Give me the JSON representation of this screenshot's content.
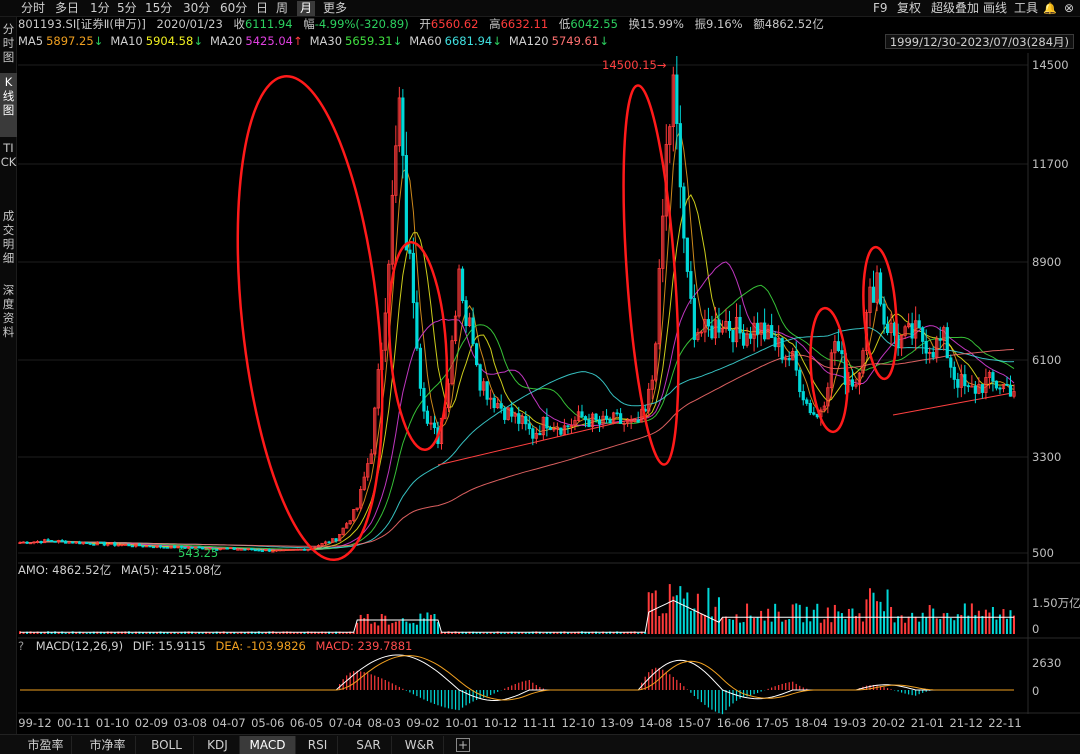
{
  "toolbar": {
    "left": [
      "分时",
      "多日",
      "1分",
      "5分",
      "15分",
      "30分",
      "60分",
      "日",
      "周",
      "月",
      "更多"
    ],
    "active": "月",
    "right": [
      "F9",
      "复权",
      "超级叠加",
      "画线",
      "工具"
    ]
  },
  "left_tabs": [
    "分时图",
    "K线图",
    "TICK",
    "成交明细",
    "深度资料"
  ],
  "info": {
    "code": "801193.SI[证券Ⅱ(申万)]",
    "date": "2020/01/23",
    "close_label": "收",
    "close": "6111.94",
    "change_label": "幅",
    "change": "-4.99%(-320.89)",
    "open_label": "开",
    "open": "6560.62",
    "high_label": "高",
    "high": "6632.11",
    "low_label": "低",
    "low": "6042.55",
    "turnover": "换15.99%",
    "amplitude": "振9.16%",
    "amount": "额4862.52亿"
  },
  "ma": [
    {
      "label": "MA5",
      "value": "5897.25",
      "dir": "↓",
      "color": "#f0a020"
    },
    {
      "label": "MA10",
      "value": "5904.58",
      "dir": "↓",
      "color": "#f0f020"
    },
    {
      "label": "MA20",
      "value": "5425.04",
      "dir": "↑",
      "color": "#e040e0"
    },
    {
      "label": "MA30",
      "value": "5659.31",
      "dir": "↓",
      "color": "#40e040"
    },
    {
      "label": "MA60",
      "value": "6681.94",
      "dir": "↓",
      "color": "#40e0e0"
    },
    {
      "label": "MA120",
      "value": "5749.61",
      "dir": "↓",
      "color": "#ff7070"
    }
  ],
  "date_range": "1999/12/30-2023/07/03(284月)",
  "y_ticks": [
    "14500",
    "11700",
    "8900",
    "6100",
    "3300",
    "500"
  ],
  "annotations": {
    "high": "14500.15",
    "low": "543.25"
  },
  "amo": {
    "header": {
      "amo": "AMO: 4862.52亿",
      "ma": "MA(5): 4215.08亿"
    },
    "ticks": [
      "1.50万亿",
      "0"
    ]
  },
  "macd": {
    "header": {
      "q": "?",
      "name": "MACD(12,26,9)",
      "dif": "DIF: 15.9115",
      "dea": "DEA: -103.9826",
      "macd": "MACD: 239.7881"
    },
    "ticks": [
      "2630",
      "0"
    ]
  },
  "x_ticks": [
    "99-12",
    "00-11",
    "01-10",
    "02-09",
    "03-08",
    "04-07",
    "05-06",
    "06-05",
    "07-04",
    "08-03",
    "09-02",
    "10-01",
    "10-12",
    "11-11",
    "12-10",
    "13-09",
    "14-08",
    "15-07",
    "16-06",
    "17-05",
    "18-04",
    "19-03",
    "20-02",
    "21-01",
    "21-12",
    "22-11"
  ],
  "bottom_tabs": [
    "市盈率",
    "市净率",
    "BOLL",
    "KDJ",
    "MACD",
    "RSI",
    "SAR",
    "W&R"
  ],
  "bottom_active": "MACD",
  "colors": {
    "up": "#ff3b3b",
    "down": "#00d8d8",
    "ellipse": "#ff1a1a",
    "grid": "#1e1e1e"
  }
}
